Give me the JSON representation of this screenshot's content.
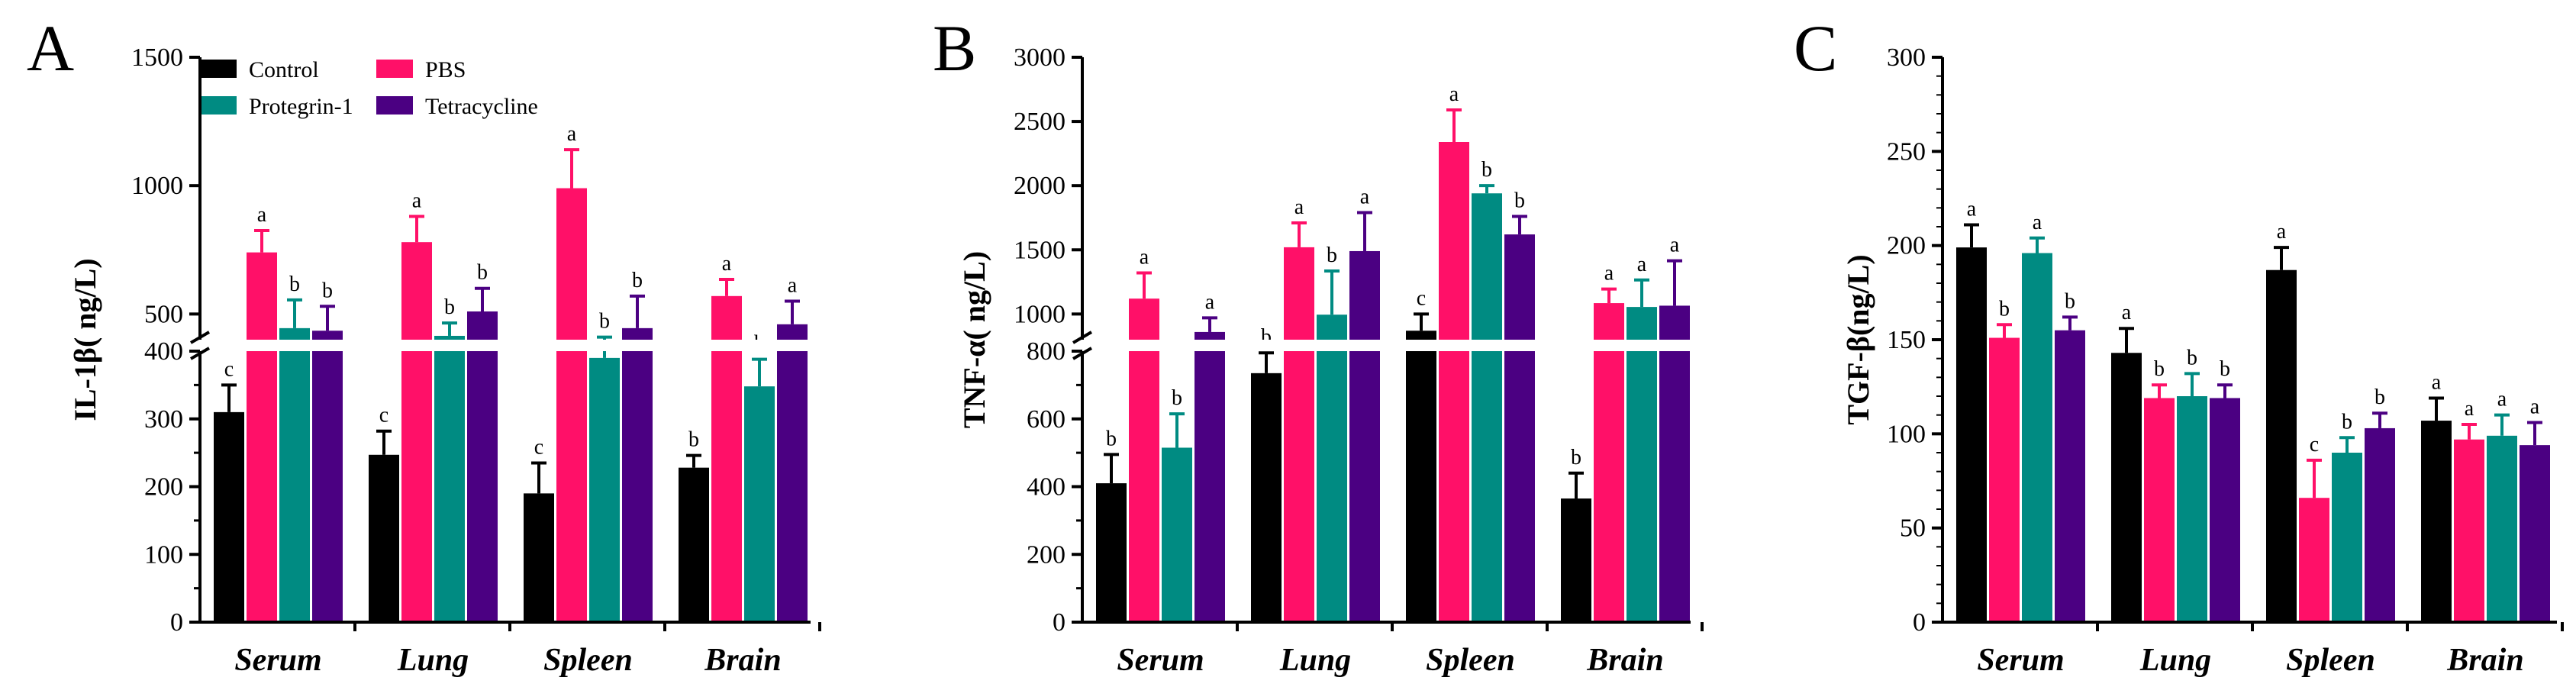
{
  "colors": {
    "Control": "#000000",
    "PBS": "#ff1068",
    "Protegrin-1": "#008b82",
    "Tetracycline": "#4b0082"
  },
  "legend": [
    "Control",
    "PBS",
    "Protegrin-1",
    "Tetracycline"
  ],
  "chart_data": [
    {
      "type": "bar",
      "panel": "A",
      "title": "",
      "xlabel": "",
      "ylabel": "IL-1β( ng/L)",
      "categories": [
        "Serum",
        "Lung",
        "Spleen",
        "Brain"
      ],
      "axis_break": {
        "lower_max": 400,
        "upper_min": 400,
        "upper_max": 1500
      },
      "lower_ticks": [
        "0",
        "100",
        "200",
        "300",
        "400"
      ],
      "upper_ticks": [
        "500",
        "1000",
        "1500"
      ],
      "series": [
        {
          "name": "Control",
          "values": [
            310,
            247,
            190,
            228
          ],
          "errors": [
            40,
            35,
            45,
            18
          ],
          "labels": [
            "c",
            "c",
            "c",
            "b"
          ]
        },
        {
          "name": "PBS",
          "values": [
            740,
            780,
            990,
            570
          ],
          "errors": [
            85,
            100,
            150,
            65
          ],
          "labels": [
            "a",
            "a",
            "a",
            "a"
          ]
        },
        {
          "name": "Protegrin-1",
          "values": [
            445,
            415,
            390,
            348
          ],
          "errors": [
            110,
            50,
            20,
            40
          ],
          "labels": [
            "b",
            "b",
            "b",
            "b"
          ]
        },
        {
          "name": "Tetracycline",
          "values": [
            435,
            510,
            445,
            460
          ],
          "errors": [
            95,
            90,
            125,
            90
          ],
          "labels": [
            "b",
            "b",
            "b",
            "a"
          ]
        }
      ]
    },
    {
      "type": "bar",
      "panel": "B",
      "title": "",
      "xlabel": "",
      "ylabel": "TNF-α( ng/L)",
      "categories": [
        "Serum",
        "Lung",
        "Spleen",
        "Brain"
      ],
      "axis_break": {
        "lower_max": 800,
        "upper_min": 800,
        "upper_max": 3000
      },
      "lower_ticks": [
        "0",
        "200",
        "400",
        "600",
        "800"
      ],
      "upper_ticks": [
        "1000",
        "1500",
        "2000",
        "2500",
        "3000"
      ],
      "series": [
        {
          "name": "Control",
          "values": [
            410,
            735,
            870,
            365
          ],
          "errors": [
            85,
            60,
            130,
            75
          ],
          "labels": [
            "b",
            "b",
            "c",
            "b"
          ]
        },
        {
          "name": "PBS",
          "values": [
            1120,
            1520,
            2340,
            1085
          ],
          "errors": [
            200,
            190,
            250,
            110
          ],
          "labels": [
            "a",
            "a",
            "a",
            "a"
          ]
        },
        {
          "name": "Protegrin-1",
          "values": [
            515,
            995,
            1940,
            1055
          ],
          "errors": [
            100,
            340,
            60,
            210
          ],
          "labels": [
            "b",
            "b",
            "b",
            "a"
          ]
        },
        {
          "name": "Tetracycline",
          "values": [
            860,
            1490,
            1620,
            1065
          ],
          "errors": [
            110,
            300,
            140,
            350
          ],
          "labels": [
            "a",
            "a",
            "b",
            "a"
          ]
        }
      ]
    },
    {
      "type": "bar",
      "panel": "C",
      "title": "",
      "xlabel": "",
      "ylabel": "TGF-β(ng/L)",
      "categories": [
        "Serum",
        "Lung",
        "Spleen",
        "Brain"
      ],
      "ylim": [
        0,
        300
      ],
      "ticks": [
        "0",
        "50",
        "100",
        "150",
        "200",
        "250",
        "300"
      ],
      "series": [
        {
          "name": "Control",
          "values": [
            199,
            143,
            187,
            107
          ],
          "errors": [
            12,
            13,
            12,
            12
          ],
          "labels": [
            "a",
            "a",
            "a",
            "a"
          ]
        },
        {
          "name": "PBS",
          "values": [
            151,
            119,
            66,
            97
          ],
          "errors": [
            7,
            7,
            20,
            8
          ],
          "labels": [
            "b",
            "b",
            "c",
            "a"
          ]
        },
        {
          "name": "Protegrin-1",
          "values": [
            196,
            120,
            90,
            99
          ],
          "errors": [
            8,
            12,
            8,
            11
          ],
          "labels": [
            "a",
            "b",
            "b",
            "a"
          ]
        },
        {
          "name": "Tetracycline",
          "values": [
            155,
            119,
            103,
            94
          ],
          "errors": [
            7,
            7,
            8,
            12
          ],
          "labels": [
            "b",
            "b",
            "b",
            "a"
          ]
        }
      ]
    }
  ]
}
